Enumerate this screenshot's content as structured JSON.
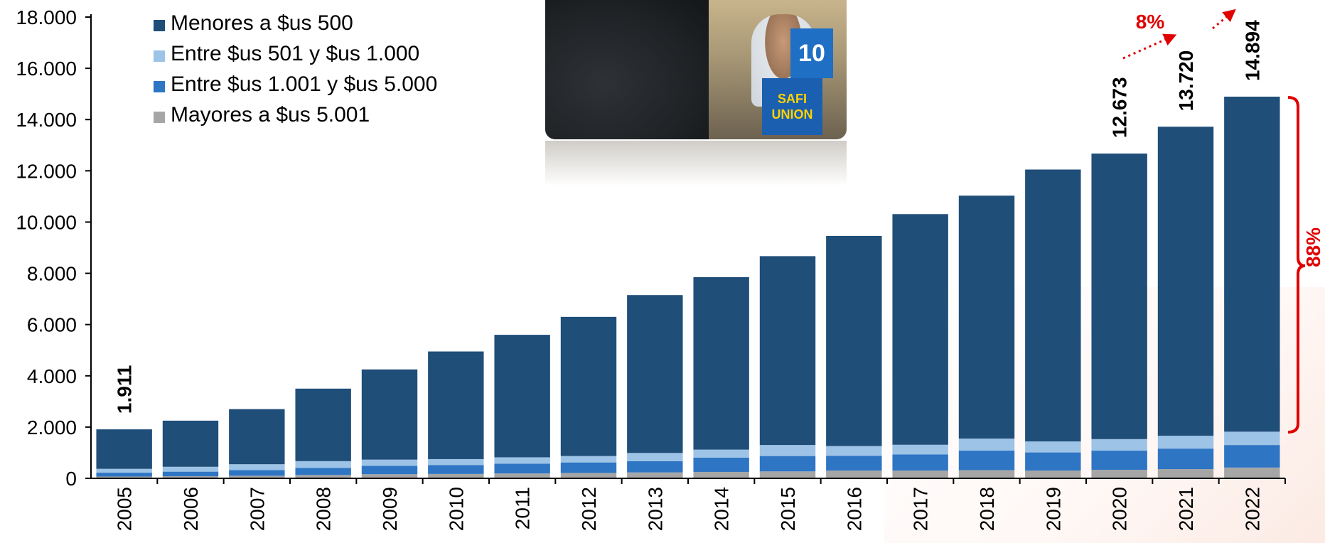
{
  "chart_data": {
    "type": "bar",
    "stacked": true,
    "categories": [
      "2005",
      "2006",
      "2007",
      "2008",
      "2009",
      "2010",
      "2011",
      "2012",
      "2013",
      "2014",
      "2015",
      "2016",
      "2017",
      "2018",
      "2019",
      "2020",
      "2021",
      "2022"
    ],
    "series": [
      {
        "name": "Mayores a $us 5.001",
        "color": "#a6a6a6",
        "values": [
          70,
          80,
          100,
          130,
          160,
          170,
          190,
          210,
          230,
          250,
          270,
          300,
          300,
          320,
          300,
          330,
          360,
          420
        ]
      },
      {
        "name": "Entre $us 1.001 y $us 5.000",
        "color": "#2e75c4",
        "values": [
          150,
          180,
          220,
          280,
          330,
          350,
          380,
          410,
          440,
          560,
          600,
          580,
          630,
          760,
          710,
          750,
          800,
          880
        ]
      },
      {
        "name": "Entre $us 501 y $us 1.000",
        "color": "#9dc3e6",
        "values": [
          150,
          190,
          230,
          260,
          240,
          230,
          250,
          250,
          320,
          310,
          430,
          380,
          380,
          470,
          430,
          450,
          500,
          520
        ]
      },
      {
        "name": "Menores a $us 500",
        "color": "#1f4e79",
        "values": [
          1541,
          1800,
          2150,
          2830,
          3520,
          4200,
          4780,
          5430,
          6160,
          6730,
          7370,
          8200,
          9000,
          9480,
          10610,
          11143,
          12060,
          13074
        ]
      }
    ],
    "totals": {
      "2005": "1.911",
      "2020": "12.673",
      "2021": "13.720",
      "2022": "14.894"
    },
    "annotations": {
      "growth": "8%",
      "share": "88%"
    },
    "yticks": [
      "0",
      "2.000",
      "4.000",
      "6.000",
      "8.000",
      "10.000",
      "12.000",
      "14.000",
      "16.000",
      "18.000"
    ],
    "ylim": [
      0,
      18000
    ],
    "legend": "top-left",
    "grid": false
  }
}
